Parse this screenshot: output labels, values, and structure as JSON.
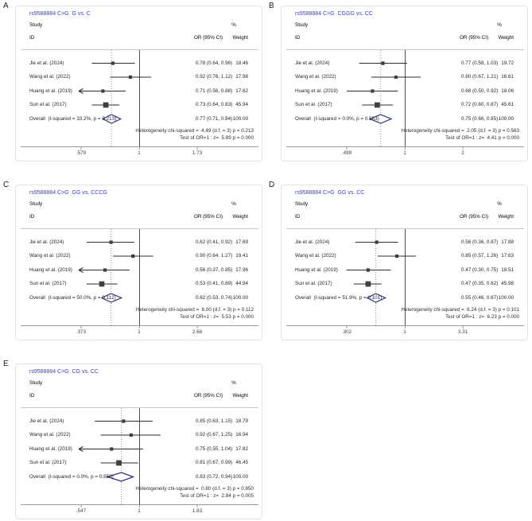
{
  "figure": {
    "background_color": "#ffffff",
    "title_color": "#3c3ccc",
    "diamond_color": "#2b2b85",
    "marker_color": "#3f3f3f",
    "null_line_color": "#4f4f4f",
    "pooled_line_color": "#999999"
  },
  "columns": {
    "study": "Study",
    "id": "ID",
    "percent": "%",
    "or_ci": "OR (95% CI)",
    "weight": "Weight"
  },
  "chart_data": [
    {
      "type": "forest",
      "panel_label": "A",
      "title": "rs9588884 C>G  G vs. C",
      "x_scale": "log",
      "x_range": [
        0.579,
        1.73
      ],
      "x_ticks": [
        ".579",
        "1",
        "1.73"
      ],
      "studies": [
        {
          "id": "Jie et al. (2024)",
          "or": 0.78,
          "ci": [
            0.64,
            0.96
          ],
          "or_ci_label": "0.78 (0.64, 0.96)",
          "weight": 18.46,
          "weight_label": "18.46",
          "arrow_low": false
        },
        {
          "id": "Wang et al. (2022)",
          "or": 0.92,
          "ci": [
            0.76,
            1.12
          ],
          "or_ci_label": "0.92 (0.76, 1.12)",
          "weight": 17.98,
          "weight_label": "17.98",
          "arrow_low": false
        },
        {
          "id": "Huang et al. (2019)",
          "or": 0.71,
          "ci": [
            0.58,
            0.88
          ],
          "or_ci_label": "0.71 (0.58, 0.88)",
          "weight": 17.62,
          "weight_label": "17.62",
          "arrow_low": true
        },
        {
          "id": "Sun et al. (2017)",
          "or": 0.73,
          "ci": [
            0.64,
            0.83
          ],
          "or_ci_label": "0.73 (0.64, 0.83)",
          "weight": 45.94,
          "weight_label": "45.94",
          "arrow_low": false
        }
      ],
      "overall": {
        "id": "Overall  (I-squared = 33.2%, p = 0.213)",
        "or": 0.77,
        "ci": [
          0.71,
          0.84
        ],
        "or_ci_label": "0.77 (0.71, 0.84)",
        "weight_label": "100.00"
      },
      "heterogeneity_label": "Heterogeneity chi-squared =  4.49 (d.f. = 3) p = 0.213",
      "test_label": "Test of OR=1 : z=  5.89 p = 0.000"
    },
    {
      "type": "forest",
      "panel_label": "B",
      "title": "rs9588884 C>G  CGGG vs. CC",
      "x_scale": "log",
      "x_range": [
        0.499,
        2.0
      ],
      "x_ticks": [
        ".499",
        "1",
        "2"
      ],
      "studies": [
        {
          "id": "Jie et al. (2024)",
          "or": 0.77,
          "ci": [
            0.58,
            1.03
          ],
          "or_ci_label": "0.77 (0.58, 1.03)",
          "weight": 19.72,
          "weight_label": "19.72",
          "arrow_low": false
        },
        {
          "id": "Wang et al. (2022)",
          "or": 0.9,
          "ci": [
            0.67,
            1.21
          ],
          "or_ci_label": "0.90 (0.67, 1.21)",
          "weight": 16.61,
          "weight_label": "16.61",
          "arrow_low": false
        },
        {
          "id": "Huang et al. (2019)",
          "or": 0.68,
          "ci": [
            0.5,
            0.92
          ],
          "or_ci_label": "0.68 (0.50, 0.92)",
          "weight": 18.06,
          "weight_label": "18.06",
          "arrow_low": false
        },
        {
          "id": "Sun et al. (2017)",
          "or": 0.72,
          "ci": [
            0.6,
            0.87
          ],
          "or_ci_label": "0.72 (0.60, 0.87)",
          "weight": 45.61,
          "weight_label": "45.61",
          "arrow_low": false
        }
      ],
      "overall": {
        "id": "Overall  (I-squared = 0.0%, p = 0.563)",
        "or": 0.75,
        "ci": [
          0.66,
          0.85
        ],
        "or_ci_label": "0.75 (0.66, 0.85)",
        "weight_label": "100.00"
      },
      "heterogeneity_label": "Heterogeneity chi-squared =  2.05 (d.f. = 3) p = 0.563",
      "test_label": "Test of OR=1 : z=  4.41 p = 0.000"
    },
    {
      "type": "forest",
      "panel_label": "C",
      "title": "rs9588884 C>G  GG vs. CCCG",
      "x_scale": "log",
      "x_range": [
        0.373,
        2.68
      ],
      "x_ticks": [
        ".373",
        "1",
        "2.68"
      ],
      "studies": [
        {
          "id": "Jie et al. (2024)",
          "or": 0.62,
          "ci": [
            0.41,
            0.92
          ],
          "or_ci_label": "0.62 (0.41, 0.92)",
          "weight": 17.69,
          "weight_label": "17.69",
          "arrow_low": false
        },
        {
          "id": "Wang et al. (2022)",
          "or": 0.9,
          "ci": [
            0.64,
            1.27
          ],
          "or_ci_label": "0.90 (0.64, 1.27)",
          "weight": 19.41,
          "weight_label": "19.41",
          "arrow_low": false
        },
        {
          "id": "Huang et al. (2019)",
          "or": 0.56,
          "ci": [
            0.37,
            0.85
          ],
          "or_ci_label": "0.56 (0.37, 0.85)",
          "weight": 17.96,
          "weight_label": "17.96",
          "arrow_low": true
        },
        {
          "id": "Sun et al. (2017)",
          "or": 0.53,
          "ci": [
            0.41,
            0.69
          ],
          "or_ci_label": "0.53 (0.41, 0.69)",
          "weight": 44.94,
          "weight_label": "44.94",
          "arrow_low": false
        }
      ],
      "overall": {
        "id": "Overall  (I-squared = 50.0%, p = 0.112)",
        "or": 0.62,
        "ci": [
          0.53,
          0.74
        ],
        "or_ci_label": "0.62 (0.53, 0.74)",
        "weight_label": "100.00"
      },
      "heterogeneity_label": "Heterogeneity chi-squared =  6.00 (d.f. = 3) p = 0.112",
      "test_label": "Test of OR=1 : z=  5.53 p = 0.000"
    },
    {
      "type": "forest",
      "panel_label": "D",
      "title": "rs9588884 C>G  GG vs. CC",
      "x_scale": "log",
      "x_range": [
        0.302,
        3.31
      ],
      "x_ticks": [
        ".302",
        "1",
        "3.31"
      ],
      "studies": [
        {
          "id": "Jie et al. (2024)",
          "or": 0.56,
          "ci": [
            0.36,
            0.87
          ],
          "or_ci_label": "0.56 (0.36, 0.87)",
          "weight": 17.88,
          "weight_label": "17.88",
          "arrow_low": false
        },
        {
          "id": "Wang et al. (2022)",
          "or": 0.85,
          "ci": [
            0.57,
            1.26
          ],
          "or_ci_label": "0.85 (0.57, 1.26)",
          "weight": 17.63,
          "weight_label": "17.63",
          "arrow_low": false
        },
        {
          "id": "Huang et al. (2019)",
          "or": 0.47,
          "ci": [
            0.3,
            0.75
          ],
          "or_ci_label": "0.47 (0.30, 0.75)",
          "weight": 18.51,
          "weight_label": "18.51",
          "arrow_low": false
        },
        {
          "id": "Sun et al. (2017)",
          "or": 0.47,
          "ci": [
            0.35,
            0.62
          ],
          "or_ci_label": "0.47 (0.35, 0.62)",
          "weight": 45.98,
          "weight_label": "45.98",
          "arrow_low": false
        }
      ],
      "overall": {
        "id": "Overall  (I-squared = 51.9%, p = 0.101)",
        "or": 0.55,
        "ci": [
          0.46,
          0.67
        ],
        "or_ci_label": "0.55 (0.46, 0.67)",
        "weight_label": "100.00"
      },
      "heterogeneity_label": "Heterogeneity chi-squared =  6.24 (d.f. = 3) p = 0.101",
      "test_label": "Test of OR=1 : z=  6.23 p = 0.000"
    },
    {
      "type": "forest",
      "panel_label": "E",
      "title": "rs9588884 C>G  CG vs. CC",
      "x_scale": "log",
      "x_range": [
        0.547,
        1.83
      ],
      "x_ticks": [
        ".547",
        "1",
        "1.83"
      ],
      "studies": [
        {
          "id": "Jie et al. (2024)",
          "or": 0.85,
          "ci": [
            0.63,
            1.15
          ],
          "or_ci_label": "0.85 (0.63, 1.15)",
          "weight": 18.79,
          "weight_label": "18.79",
          "arrow_low": false
        },
        {
          "id": "Wang et al. (2022)",
          "or": 0.92,
          "ci": [
            0.67,
            1.25
          ],
          "or_ci_label": "0.92 (0.67, 1.25)",
          "weight": 16.94,
          "weight_label": "16.94",
          "arrow_low": false
        },
        {
          "id": "Huang et al. (2019)",
          "or": 0.75,
          "ci": [
            0.55,
            1.04
          ],
          "or_ci_label": "0.75 (0.55, 1.04)",
          "weight": 17.82,
          "weight_label": "17.82",
          "arrow_low": true
        },
        {
          "id": "Sun et al. (2017)",
          "or": 0.81,
          "ci": [
            0.67,
            0.99
          ],
          "or_ci_label": "0.81 (0.67, 0.99)",
          "weight": 46.45,
          "weight_label": "46.45",
          "arrow_low": false
        }
      ],
      "overall": {
        "id": "Overall  (I-squared = 0.0%, p = 0.850)",
        "or": 0.83,
        "ci": [
          0.72,
          0.94
        ],
        "or_ci_label": "0.83 (0.72, 0.94)",
        "weight_label": "100.00"
      },
      "heterogeneity_label": "Heterogeneity chi-squared =  0.80 (d.f. = 3) p = 0.850",
      "test_label": "Test of OR=1 : z=  2.84 p = 0.005"
    }
  ]
}
